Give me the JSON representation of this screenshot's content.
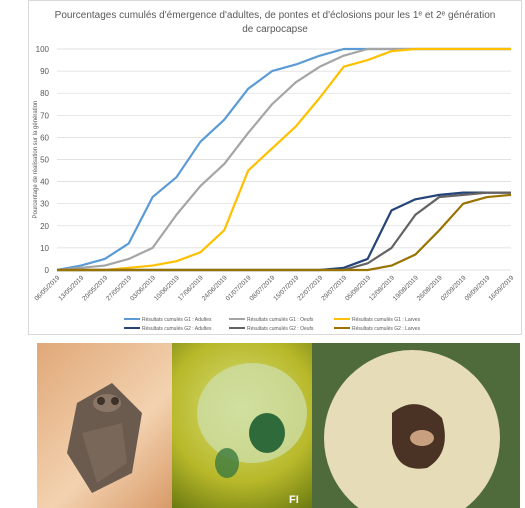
{
  "chart_data": {
    "type": "line",
    "title": "Pourcentages cumulés d'émergence d'adultes, de pontes et d'éclosions pour les 1ᵉ et 2ᵉ génération de carpocapse",
    "y_label": "Pourcentage de réalisation sur la génération",
    "categories": [
      "06/05/2019",
      "13/05/2019",
      "20/05/2019",
      "27/05/2019",
      "03/06/2019",
      "10/06/2019",
      "17/06/2019",
      "24/06/2019",
      "01/07/2019",
      "08/07/2019",
      "15/07/2019",
      "22/07/2019",
      "29/07/2019",
      "05/08/2019",
      "12/08/2019",
      "19/08/2019",
      "26/08/2019",
      "02/09/2019",
      "09/09/2019",
      "16/09/2019"
    ],
    "ylim": [
      0,
      100
    ],
    "yticks": [
      0,
      10,
      20,
      30,
      40,
      50,
      60,
      70,
      80,
      90,
      100
    ],
    "grid": true,
    "legend": "bottom",
    "series": [
      {
        "name": "Résultats cumulés G1 : Adultes",
        "color": "#5b9bd5",
        "values": [
          0,
          2,
          5,
          12,
          33,
          42,
          58,
          68,
          82,
          90,
          93,
          97,
          100,
          100,
          100,
          100,
          100,
          100,
          100,
          100
        ]
      },
      {
        "name": "Résultats cumulés G1 : Oeufs",
        "color": "#a5a5a5",
        "values": [
          0,
          1,
          2,
          5,
          10,
          25,
          38,
          48,
          62,
          75,
          85,
          92,
          97,
          100,
          100,
          100,
          100,
          100,
          100,
          100
        ]
      },
      {
        "name": "Résultats cumulés G1 : Larves",
        "color": "#ffc000",
        "values": [
          0,
          0,
          0,
          1,
          2,
          4,
          8,
          18,
          45,
          55,
          65,
          78,
          92,
          95,
          99,
          100,
          100,
          100,
          100,
          100
        ]
      },
      {
        "name": "Résultats cumulés G2 : Adultes",
        "color": "#264478",
        "values": [
          0,
          0,
          0,
          0,
          0,
          0,
          0,
          0,
          0,
          0,
          0,
          0,
          1,
          5,
          27,
          32,
          34,
          35,
          35,
          35
        ]
      },
      {
        "name": "Résultats cumulés G2 : Oeufs",
        "color": "#636363",
        "values": [
          0,
          0,
          0,
          0,
          0,
          0,
          0,
          0,
          0,
          0,
          0,
          0,
          0,
          3,
          10,
          25,
          33,
          34,
          35,
          35
        ]
      },
      {
        "name": "Résultats cumulés G2 : Larves",
        "color": "#997300",
        "values": [
          0,
          0,
          0,
          0,
          0,
          0,
          0,
          0,
          0,
          0,
          0,
          0,
          0,
          0,
          2,
          7,
          18,
          30,
          33,
          34
        ]
      }
    ]
  },
  "photos": [
    {},
    {
      "caption": "FI"
    },
    {}
  ]
}
